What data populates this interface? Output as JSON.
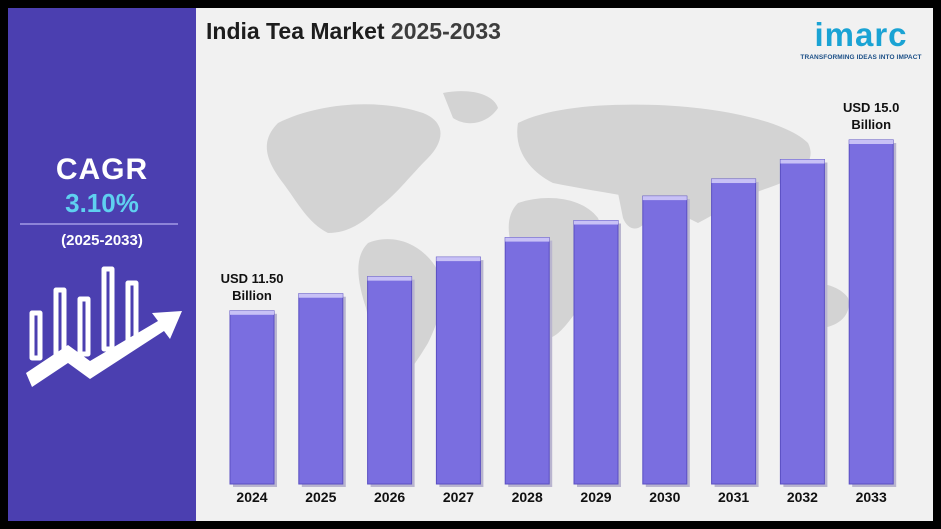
{
  "sidebar": {
    "cagr_label": "CAGR",
    "cagr_value": "3.10%",
    "period": "(2025-2033)",
    "icon": "growth-chart-arrow-icon"
  },
  "header": {
    "title_main": "India Tea Market",
    "title_years": "2025-2033"
  },
  "logo": {
    "wordmark": "imarc",
    "tagline": "TRANSFORMING IDEAS INTO IMPACT"
  },
  "background": {
    "icon": "world-map-icon"
  },
  "colors": {
    "sidebar": "#4b3fb0",
    "bar": "#7a6ee0",
    "bar_top": "#c8c1f6",
    "cagr_value": "#5fd0f0",
    "logo": "#1aa3d4"
  },
  "chart_data": {
    "type": "bar",
    "title": "India Tea Market 2025-2033",
    "xlabel": "",
    "ylabel": "",
    "categories": [
      "2024",
      "2025",
      "2026",
      "2027",
      "2028",
      "2029",
      "2030",
      "2031",
      "2032",
      "2033"
    ],
    "values": [
      11.5,
      11.85,
      12.2,
      12.6,
      13.0,
      13.35,
      13.85,
      14.2,
      14.6,
      15.0
    ],
    "unit": "USD Billion",
    "ylim": [
      10.0,
      15.0
    ],
    "grid": false,
    "annotations": [
      {
        "category": "2024",
        "lines": [
          "USD 11.50",
          "Billion"
        ]
      },
      {
        "category": "2033",
        "lines": [
          "USD 15.0",
          "Billion"
        ]
      }
    ]
  }
}
